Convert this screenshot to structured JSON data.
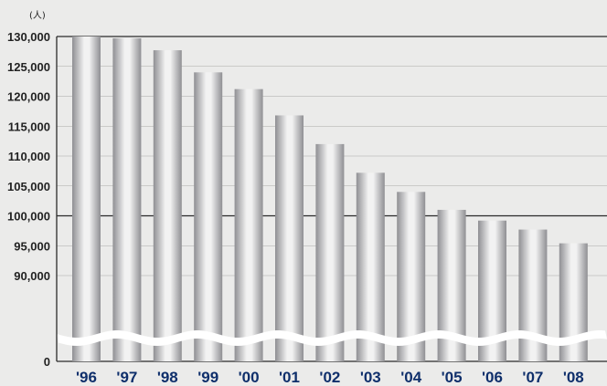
{
  "chart_data": {
    "type": "bar",
    "unit_label": "(人)",
    "categories": [
      "'96",
      "'97",
      "'98",
      "'99",
      "'00",
      "'01",
      "'02",
      "'03",
      "'04",
      "'05",
      "'06",
      "'07",
      "'08"
    ],
    "values": [
      130000,
      129700,
      127700,
      124000,
      121200,
      116800,
      112000,
      107200,
      104000,
      101000,
      99200,
      97700,
      95400
    ],
    "y_ticks": [
      {
        "value": 130000,
        "label": "130,000"
      },
      {
        "value": 125000,
        "label": "125,000"
      },
      {
        "value": 120000,
        "label": "120,000"
      },
      {
        "value": 115000,
        "label": "115,000"
      },
      {
        "value": 110000,
        "label": "110,000"
      },
      {
        "value": 105000,
        "label": "105,000"
      },
      {
        "value": 100000,
        "label": "100,000"
      },
      {
        "value": 95000,
        "label": "95,000"
      },
      {
        "value": 90000,
        "label": "90,000"
      },
      {
        "value": 0,
        "label": "0"
      }
    ],
    "ylim": [
      85000,
      130000
    ],
    "y_axis_broken": true,
    "grid": true,
    "title": "",
    "xlabel": "",
    "ylabel": "",
    "colors": {
      "bar_dark": "#8f8f93",
      "bar_light": "#f2f2f2",
      "grid": "#2a2a2a",
      "x_label": "#0f2f6b",
      "background": "#ebebea"
    }
  }
}
